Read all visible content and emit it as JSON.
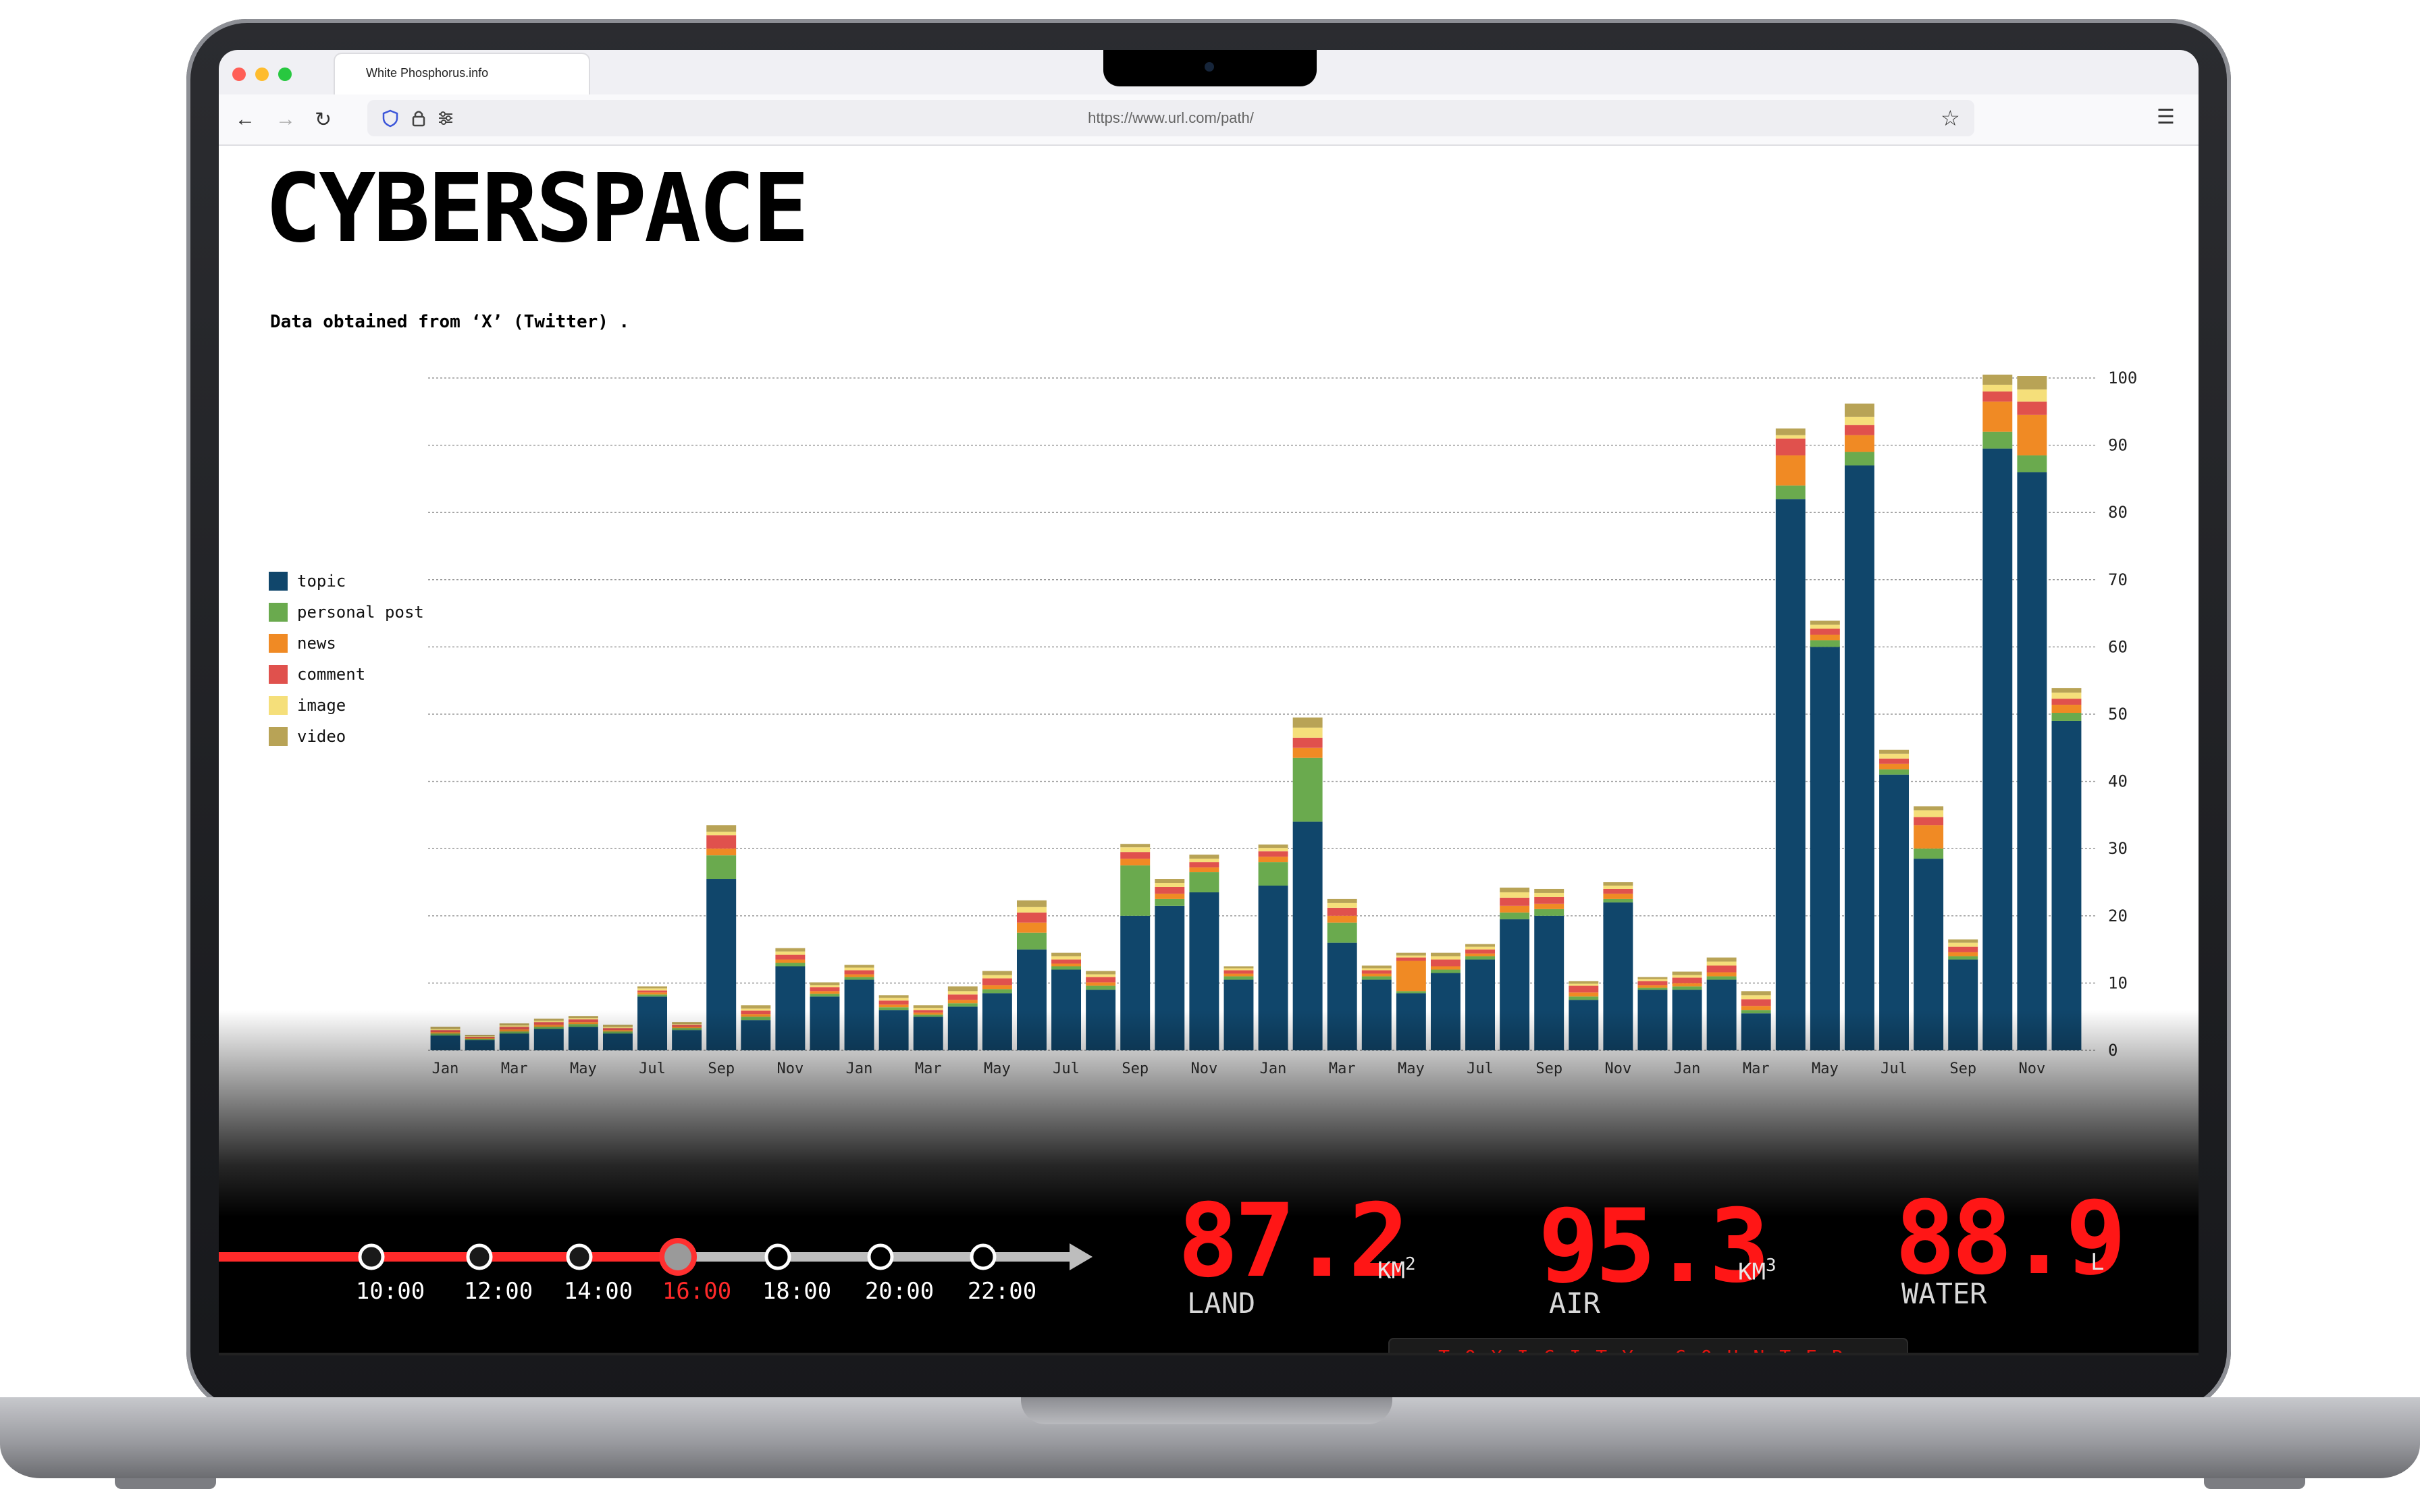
{
  "browser": {
    "tab_title": "White Phosphorus.info",
    "url": "https://www.url.com/path/"
  },
  "page": {
    "title": "CYBERSPACE",
    "subtitle": "Data obtained from ‘X’ (Twitter) ."
  },
  "colors": {
    "topic": "#10466b",
    "personal_post": "#6aaa4e",
    "news": "#f08a24",
    "comment": "#e0514d",
    "image": "#f5df7a",
    "video": "#b8a356",
    "accent_red": "#ff1616"
  },
  "chart_data": {
    "type": "bar",
    "stacked": true,
    "legend_position": "left",
    "grid": true,
    "ylim": [
      0,
      100
    ],
    "yticks": [
      0,
      10,
      20,
      30,
      40,
      50,
      60,
      70,
      80,
      90,
      100
    ],
    "x_tick_labels": [
      "Jan",
      "Mar",
      "May",
      "Jul",
      "Sep",
      "Nov",
      "Jan",
      "Mar",
      "May",
      "Jul",
      "Sep",
      "Nov",
      "Jan",
      "Mar",
      "May",
      "Jul",
      "Sep",
      "Nov",
      "Jan",
      "Mar",
      "May",
      "Jul",
      "Sep",
      "Nov"
    ],
    "categories": [
      "1",
      "2",
      "3",
      "4",
      "5",
      "6",
      "7",
      "8",
      "9",
      "10",
      "11",
      "12",
      "13",
      "14",
      "15",
      "16",
      "17",
      "18",
      "19",
      "20",
      "21",
      "22",
      "23",
      "24",
      "25",
      "26",
      "27",
      "28",
      "29",
      "30",
      "31",
      "32",
      "33",
      "34",
      "35",
      "36",
      "37",
      "38",
      "39",
      "40",
      "41",
      "42",
      "43",
      "44",
      "45",
      "46",
      "47",
      "48"
    ],
    "series": [
      {
        "name": "topic",
        "values": [
          2.2,
          1.5,
          2.5,
          3.2,
          3.5,
          2.5,
          8.0,
          3.0,
          25.5,
          4.5,
          12.5,
          8.0,
          10.5,
          6.0,
          5.0,
          6.5,
          8.5,
          15.0,
          12.0,
          9.0,
          20.0,
          21.5,
          23.5,
          10.5,
          24.5,
          34.0,
          16.0,
          10.5,
          8.5,
          11.5,
          13.5,
          19.5,
          20.0,
          7.5,
          22.0,
          9.0,
          9.0,
          10.5,
          5.5,
          82.0,
          60.0,
          87.0,
          41.0,
          28.5,
          13.5,
          89.5,
          86.0,
          49.0
        ]
      },
      {
        "name": "personal post",
        "values": [
          0.3,
          0.2,
          0.3,
          0.3,
          0.4,
          0.3,
          0.3,
          0.3,
          3.5,
          0.5,
          0.5,
          0.4,
          0.4,
          0.4,
          0.3,
          0.5,
          0.6,
          2.5,
          0.5,
          0.6,
          7.5,
          1.0,
          3.0,
          0.5,
          3.5,
          9.5,
          3.0,
          0.5,
          0.3,
          0.5,
          0.5,
          1.0,
          1.0,
          0.5,
          0.5,
          0.3,
          0.5,
          0.5,
          0.5,
          2.0,
          1.0,
          2.0,
          0.8,
          1.5,
          0.5,
          2.5,
          2.5,
          1.2
        ]
      },
      {
        "name": "news",
        "values": [
          0.2,
          0.1,
          0.3,
          0.3,
          0.3,
          0.2,
          0.3,
          0.2,
          1.0,
          0.4,
          0.5,
          0.4,
          0.4,
          0.4,
          0.3,
          0.5,
          0.6,
          1.5,
          0.4,
          0.5,
          1.0,
          0.8,
          0.7,
          0.4,
          0.8,
          1.5,
          1.0,
          0.4,
          4.5,
          0.5,
          0.4,
          1.0,
          0.8,
          0.6,
          0.8,
          0.4,
          0.5,
          0.6,
          0.6,
          4.5,
          0.8,
          2.5,
          0.8,
          3.5,
          0.6,
          4.5,
          6.0,
          1.2
        ]
      },
      {
        "name": "comment",
        "values": [
          0.3,
          0.2,
          0.4,
          0.4,
          0.4,
          0.3,
          0.3,
          0.3,
          2.0,
          0.5,
          0.7,
          0.6,
          0.6,
          0.6,
          0.4,
          0.8,
          1.0,
          1.5,
          0.6,
          0.8,
          1.0,
          1.0,
          0.8,
          0.5,
          0.8,
          1.5,
          1.2,
          0.5,
          0.5,
          1.0,
          0.6,
          1.2,
          1.0,
          1.0,
          0.7,
          0.6,
          0.8,
          1.0,
          1.0,
          2.5,
          0.9,
          1.5,
          0.8,
          1.2,
          0.8,
          1.5,
          2.0,
          0.9
        ]
      },
      {
        "name": "image",
        "values": [
          0.2,
          0.1,
          0.2,
          0.2,
          0.2,
          0.2,
          0.3,
          0.1,
          0.5,
          0.3,
          0.5,
          0.3,
          0.4,
          0.4,
          0.3,
          0.5,
          0.5,
          0.8,
          0.5,
          0.4,
          0.7,
          0.6,
          0.5,
          0.3,
          0.5,
          1.5,
          0.7,
          0.3,
          0.3,
          0.5,
          0.4,
          0.8,
          0.6,
          0.3,
          0.5,
          0.3,
          0.4,
          0.6,
          0.6,
          0.5,
          0.6,
          1.2,
          0.7,
          1.0,
          0.6,
          1.0,
          1.8,
          0.9
        ]
      },
      {
        "name": "video",
        "values": [
          0.3,
          0.2,
          0.3,
          0.3,
          0.3,
          0.3,
          0.3,
          0.3,
          1.0,
          0.5,
          0.5,
          0.4,
          0.4,
          0.4,
          0.4,
          0.7,
          0.6,
          1.0,
          0.5,
          0.5,
          0.5,
          0.6,
          0.6,
          0.3,
          0.5,
          1.5,
          0.6,
          0.4,
          0.4,
          0.5,
          0.4,
          0.7,
          0.6,
          0.4,
          0.5,
          0.3,
          0.5,
          0.6,
          0.6,
          1.0,
          0.6,
          2.0,
          0.6,
          0.6,
          0.5,
          1.5,
          2.0,
          0.7
        ]
      }
    ]
  },
  "timeline": {
    "labels": [
      "10:00",
      "12:00",
      "14:00",
      "16:00",
      "18:00",
      "20:00",
      "22:00"
    ],
    "active_index": 3
  },
  "counters": {
    "land": {
      "value": "87.2",
      "unit": "KM",
      "exp": "2",
      "label": "LAND"
    },
    "air": {
      "value": "95.3",
      "unit": "KM",
      "exp": "3",
      "label": "AIR"
    },
    "water": {
      "value": "88.9",
      "unit": "L",
      "label": "WATER"
    },
    "footer": "TOXICITY COUNTER"
  }
}
